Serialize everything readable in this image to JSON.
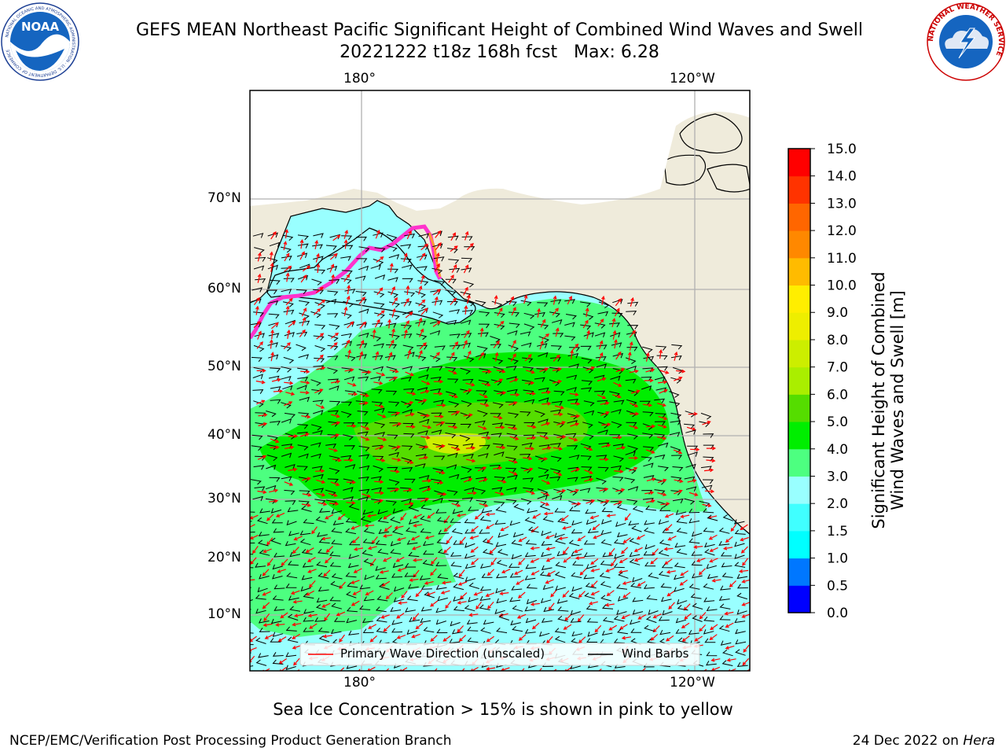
{
  "header": {
    "title_line1": "GEFS MEAN Northeast Pacific Significant Height of Combined Wind Waves and Swell",
    "title_line2": "20221222 t18z 168h fcst   Max: 6.28"
  },
  "logos": {
    "left": {
      "name": "NOAA",
      "text": "NOAA",
      "ring_text": "NATIONAL OCEANIC AND ATMOSPHERIC ADMINISTRATION · U.S. DEPARTMENT OF COMMERCE"
    },
    "right": {
      "name": "National Weather Service",
      "ring_text": "NATIONAL WEATHER SERVICE"
    }
  },
  "map": {
    "lon_labels_top": [
      "180°",
      "120°W"
    ],
    "lon_labels_bottom": [
      "180°",
      "120°W"
    ],
    "lat_labels": [
      "70°N",
      "60°N",
      "50°N",
      "40°N",
      "30°N",
      "20°N",
      "10°N"
    ],
    "land_color": "#efebdb",
    "grid_color": "#b0b0b0"
  },
  "legend": {
    "wave_label": "Primary Wave Direction (unscaled)",
    "wind_label": "Wind Barbs",
    "wave_color": "#ff0000",
    "wind_color": "#000000"
  },
  "colorbar": {
    "label_line1": "Significant Height of Combined",
    "label_line2": "Wind Waves and Swell [m]",
    "ticks": [
      "0.0",
      "0.5",
      "1.0",
      "1.5",
      "2.0",
      "3.0",
      "4.0",
      "5.0",
      "6.0",
      "7.0",
      "8.0",
      "9.0",
      "10.0",
      "11.0",
      "12.0",
      "13.0",
      "14.0",
      "15.0"
    ],
    "colors": [
      "#0000ff",
      "#0077ff",
      "#00ffff",
      "#40ffff",
      "#99ffff",
      "#4dff80",
      "#00ee00",
      "#55dd00",
      "#aaee00",
      "#ccee00",
      "#eeee00",
      "#ffee00",
      "#ffbb00",
      "#ff8800",
      "#ff6600",
      "#ff3300",
      "#ff0000"
    ]
  },
  "ice_note": "Sea Ice Concentration > 15% is shown in pink to yellow",
  "footer": {
    "left": "NCEP/EMC/Verification Post Processing Product Generation Branch",
    "right_prefix": "24 Dec 2022 on ",
    "right_machine": "Hera"
  }
}
